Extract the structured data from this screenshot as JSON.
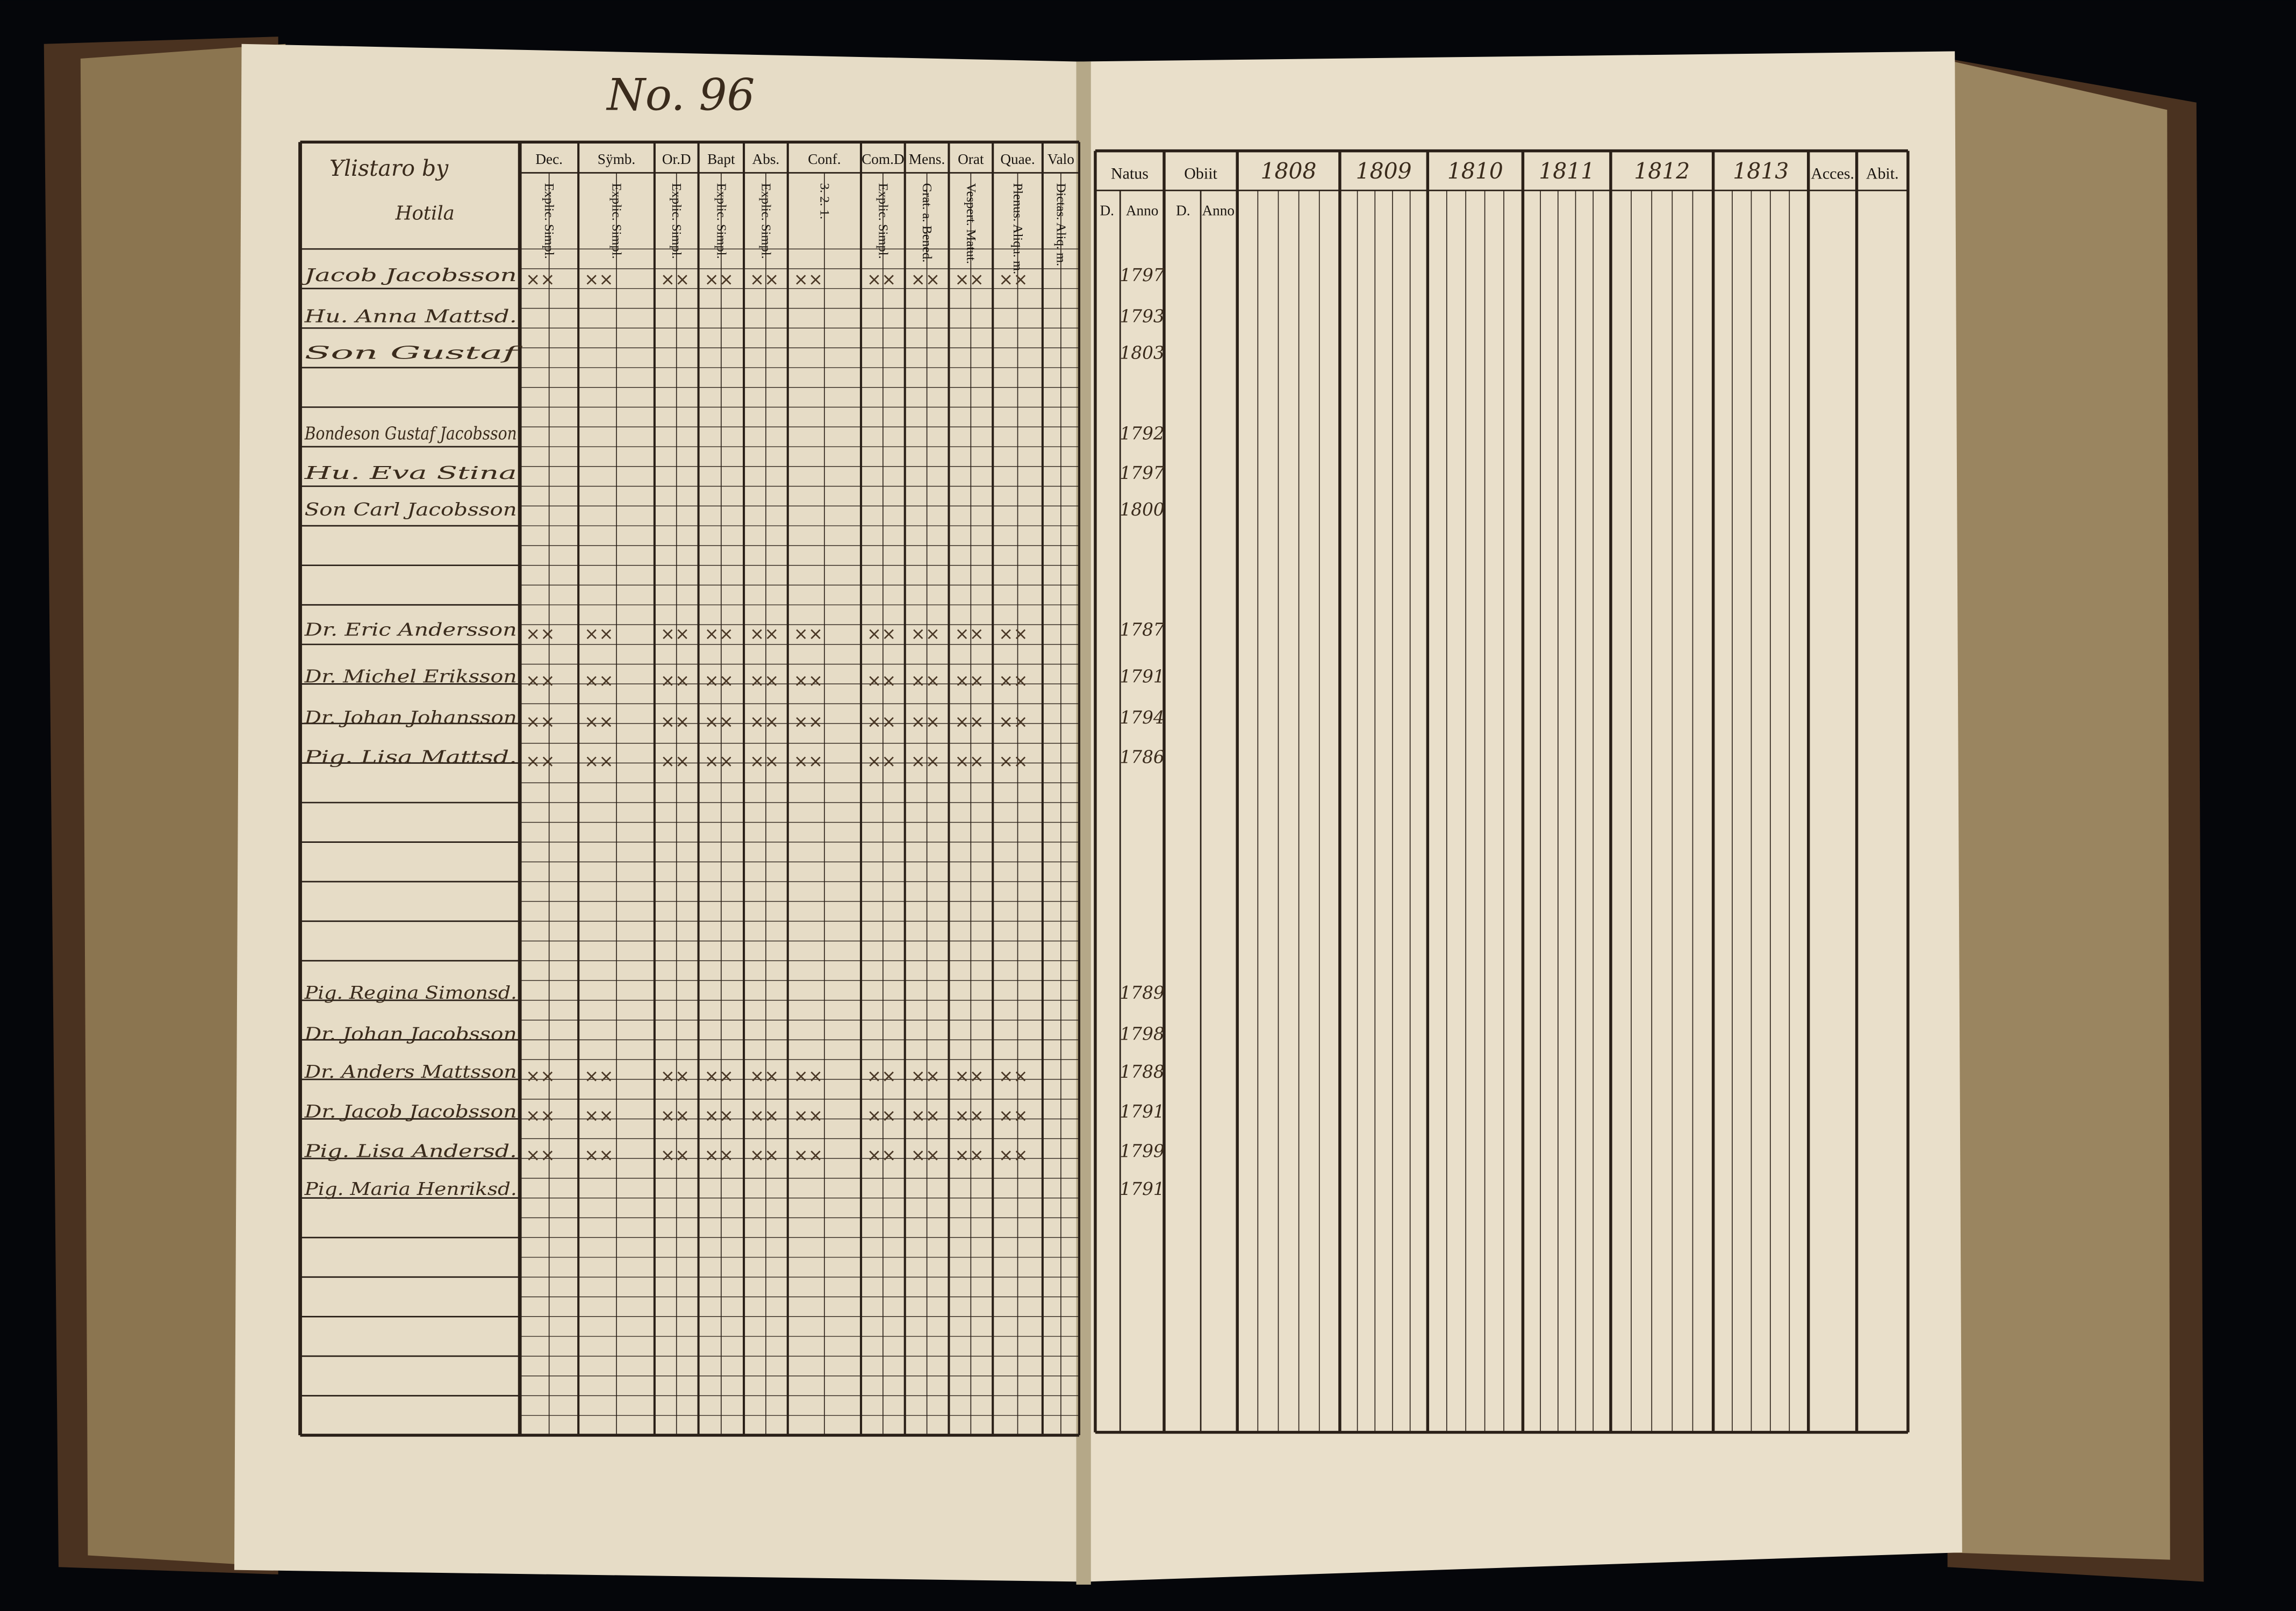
{
  "page_number": "No. 96",
  "village": "Ylistaro by",
  "farm": "Hotila",
  "left_headers": [
    "Dec.",
    "Sÿmb.",
    "Or.D",
    "Bapt",
    "Abs.",
    "Conf.",
    "Com.D",
    "Mens.",
    "Orat",
    "Quae.",
    "Valo"
  ],
  "left_subheaders": [
    "Explic. Simpl.",
    "Explic. Simpl.",
    "Explic. Simpl.",
    "Explic. Simpl.",
    "Explic. Simpl.",
    "3. 2. 1.",
    "Explic. Simpl.",
    "Grat. a. Bened.",
    "Vespert. Matut.",
    "Plenus. Aliqu. m.",
    "Dictas. Aliq. m."
  ],
  "right_headers": [
    "Natus",
    "Obiit",
    "1808",
    "1809",
    "1810",
    "1811",
    "1812",
    "1813",
    "Acces.",
    "Abit."
  ],
  "right_subheaders": [
    "D.",
    "Anno",
    "D.",
    "Anno"
  ],
  "entries": [
    {
      "name": "Jacob Jacobsson",
      "born": "1797"
    },
    {
      "name": "Hu. Anna Mattsd.",
      "born": "1793"
    },
    {
      "name": "Son Gustaf",
      "born": "1803"
    },
    {
      "name": "Bondeson Gustaf Jacobsson",
      "born": "1792"
    },
    {
      "name": "Hu. Eva Stina",
      "born": "1797"
    },
    {
      "name": "Son Carl Jacobsson",
      "born": "1800"
    },
    {
      "name": "Dr. Eric Andersson",
      "born": "1787"
    },
    {
      "name": "Dr. Michel Eriksson",
      "born": "1791"
    },
    {
      "name": "Dr. Johan Johansson",
      "born": "1794"
    },
    {
      "name": "Pig. Lisa Mattsd.",
      "born": "1786"
    },
    {
      "name": "Pig. Regina Simonsd.",
      "born": "1789"
    },
    {
      "name": "Dr. Johan Jacobsson",
      "born": "1798"
    },
    {
      "name": "Dr. Anders Mattsson",
      "born": "1788"
    },
    {
      "name": "Dr. Jacob Jacobsson",
      "born": "1791"
    },
    {
      "name": "Pig. Lisa Andersd.",
      "born": "1799"
    },
    {
      "name": "Pig. Maria Henriksd.",
      "born": "1791"
    }
  ]
}
